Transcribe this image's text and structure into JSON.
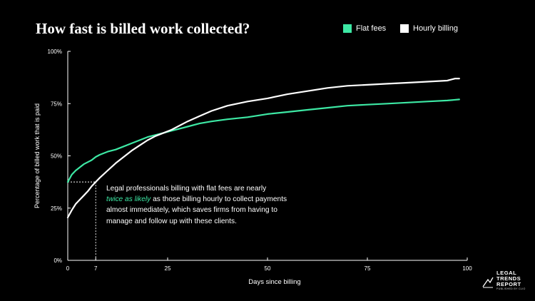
{
  "title": "How fast is billed work collected?",
  "legend": {
    "flat_label": "Flat fees",
    "hourly_label": "Hourly billing",
    "flat_color": "#3de8a4",
    "hourly_color": "#ffffff"
  },
  "annotation": {
    "line1": "Legal professionals billing with flat fees are nearly",
    "emphasis": "twice as likely",
    "line2": " as those billing hourly to collect payments",
    "line3": "almost immediately, which saves firms from having to",
    "line4": "manage and follow up with these clients."
  },
  "logo": {
    "line1": "LEGAL",
    "line2": "TRENDS",
    "line3": "REPORT",
    "sub": "PUBLISHED BY CLIO"
  },
  "chart_data": {
    "type": "line",
    "xlabel": "Days since billing",
    "ylabel": "Percentage of billed work that is paid",
    "xlim": [
      0,
      100
    ],
    "ylim": [
      0,
      100
    ],
    "x_ticks": [
      0,
      7,
      25,
      50,
      75,
      100
    ],
    "y_ticks": [
      0,
      25,
      50,
      75,
      100
    ],
    "y_tick_labels": [
      "0%",
      "25%",
      "50%",
      "75%",
      "100%"
    ],
    "grid": false,
    "legend_position": "top-right",
    "reference": {
      "x": 7,
      "y": 37.5
    },
    "series": [
      {
        "name": "Flat fees",
        "color": "#3de8a4",
        "x": [
          0,
          1,
          2,
          3,
          4,
          5,
          6,
          7,
          8,
          10,
          12,
          14,
          16,
          18,
          20,
          22,
          24,
          26,
          28,
          30,
          33,
          36,
          40,
          45,
          50,
          55,
          60,
          65,
          70,
          75,
          80,
          85,
          90,
          95,
          98
        ],
        "y": [
          37.5,
          41,
          43,
          44.5,
          46,
          47,
          48,
          49.5,
          50.5,
          52,
          53,
          54.5,
          56,
          57.5,
          59,
          60,
          61,
          62,
          63,
          64,
          65.5,
          66.5,
          67.5,
          68.5,
          70,
          71,
          72,
          73,
          74,
          74.5,
          75,
          75.5,
          76,
          76.5,
          77
        ]
      },
      {
        "name": "Hourly billing",
        "color": "#ffffff",
        "x": [
          0,
          1,
          2,
          3,
          4,
          5,
          6,
          7,
          8,
          10,
          12,
          14,
          16,
          18,
          20,
          22,
          24,
          26,
          28,
          30,
          33,
          36,
          40,
          45,
          50,
          55,
          60,
          65,
          70,
          75,
          80,
          85,
          90,
          95,
          97,
          98
        ],
        "y": [
          20.5,
          24,
          27,
          29,
          31,
          33,
          35.5,
          37.5,
          39.5,
          43,
          46.5,
          49.5,
          52.5,
          55,
          57.5,
          59.5,
          61,
          62.5,
          64.5,
          66.5,
          69,
          71.5,
          74,
          76,
          77.5,
          79.5,
          81,
          82.5,
          83.5,
          84,
          84.5,
          85,
          85.5,
          86,
          87,
          87
        ]
      }
    ]
  }
}
